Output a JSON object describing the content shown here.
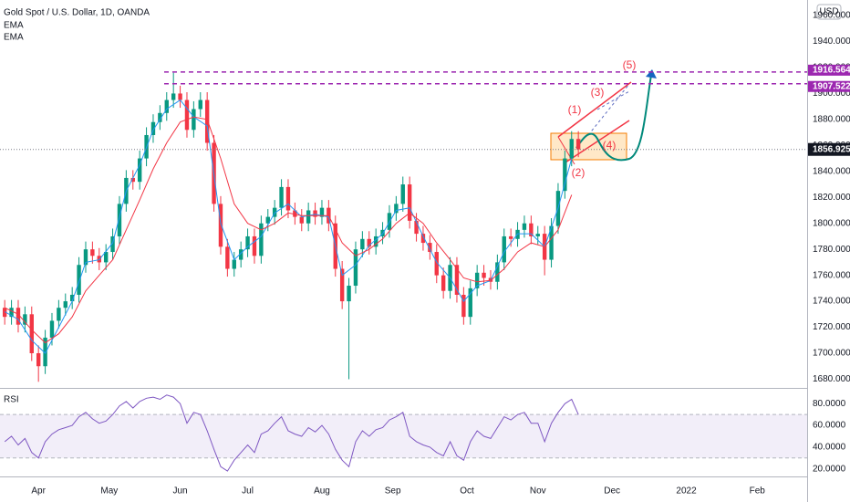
{
  "chart_data": {
    "type": "candlestick",
    "title": "Gold Spot / U.S. Dollar, 1D, OANDA",
    "currency": "USD",
    "x": [
      -10,
      -8,
      -6,
      -4,
      -2,
      0,
      2,
      4,
      6,
      8,
      10,
      12,
      14,
      16,
      18,
      20,
      22,
      24,
      26,
      28,
      30,
      32,
      34,
      36,
      38,
      40,
      42,
      44,
      46,
      48,
      50,
      52,
      54,
      56,
      58,
      60,
      62,
      64,
      66,
      68,
      70,
      72,
      74,
      76,
      78,
      80,
      82,
      84,
      86,
      88,
      90,
      92,
      94,
      96,
      98,
      100,
      102,
      104,
      106,
      108,
      110,
      112,
      114,
      116,
      118,
      120,
      122,
      124,
      126,
      128,
      130,
      132,
      134,
      136,
      138,
      140,
      142,
      144,
      146,
      148,
      150,
      152,
      154,
      156,
      158,
      160
    ],
    "open": [
      1735,
      1728,
      1735,
      1722,
      1730,
      1700,
      1690,
      1712,
      1725,
      1735,
      1740,
      1745,
      1768,
      1780,
      1775,
      1770,
      1778,
      1790,
      1815,
      1835,
      1832,
      1850,
      1868,
      1878,
      1885,
      1895,
      1900,
      1895,
      1872,
      1888,
      1895,
      1862,
      1815,
      1782,
      1765,
      1772,
      1780,
      1790,
      1775,
      1800,
      1805,
      1812,
      1828,
      1810,
      1805,
      1800,
      1810,
      1805,
      1812,
      1800,
      1765,
      1740,
      1752,
      1780,
      1788,
      1782,
      1790,
      1795,
      1808,
      1815,
      1830,
      1802,
      1792,
      1785,
      1778,
      1760,
      1748,
      1768,
      1745,
      1728,
      1750,
      1762,
      1758,
      1755,
      1770,
      1790,
      1788,
      1795,
      1800,
      1790,
      1792,
      1772,
      1798,
      1825,
      1850,
      1865
    ],
    "high": [
      1741,
      1741,
      1741,
      1736,
      1736,
      1706,
      1718,
      1731,
      1741,
      1746,
      1751,
      1774,
      1786,
      1786,
      1781,
      1784,
      1796,
      1821,
      1841,
      1841,
      1856,
      1874,
      1884,
      1891,
      1901,
      1916,
      1906,
      1901,
      1894,
      1901,
      1901,
      1868,
      1821,
      1788,
      1778,
      1786,
      1796,
      1796,
      1806,
      1811,
      1818,
      1834,
      1834,
      1816,
      1811,
      1816,
      1816,
      1818,
      1818,
      1806,
      1771,
      1758,
      1786,
      1794,
      1794,
      1796,
      1801,
      1814,
      1821,
      1836,
      1836,
      1808,
      1798,
      1791,
      1784,
      1766,
      1774,
      1774,
      1751,
      1756,
      1768,
      1768,
      1764,
      1776,
      1796,
      1796,
      1801,
      1806,
      1806,
      1798,
      1798,
      1804,
      1831,
      1856,
      1871,
      1871
    ],
    "low": [
      1722,
      1722,
      1716,
      1716,
      1694,
      1678,
      1684,
      1706,
      1719,
      1729,
      1734,
      1739,
      1762,
      1769,
      1764,
      1764,
      1772,
      1784,
      1809,
      1826,
      1826,
      1844,
      1862,
      1872,
      1879,
      1889,
      1889,
      1866,
      1866,
      1882,
      1856,
      1809,
      1776,
      1759,
      1759,
      1766,
      1774,
      1769,
      1769,
      1794,
      1799,
      1806,
      1804,
      1799,
      1794,
      1794,
      1799,
      1799,
      1794,
      1759,
      1734,
      1680,
      1746,
      1774,
      1776,
      1776,
      1784,
      1789,
      1802,
      1809,
      1796,
      1786,
      1779,
      1772,
      1754,
      1742,
      1742,
      1739,
      1722,
      1722,
      1744,
      1752,
      1749,
      1749,
      1764,
      1782,
      1782,
      1789,
      1784,
      1784,
      1760,
      1766,
      1792,
      1819,
      1844,
      1851
    ],
    "close": [
      1728,
      1735,
      1722,
      1730,
      1700,
      1690,
      1712,
      1725,
      1735,
      1740,
      1745,
      1768,
      1780,
      1775,
      1770,
      1778,
      1790,
      1815,
      1835,
      1832,
      1850,
      1868,
      1878,
      1885,
      1895,
      1900,
      1895,
      1872,
      1888,
      1895,
      1862,
      1815,
      1782,
      1765,
      1772,
      1780,
      1790,
      1775,
      1800,
      1805,
      1812,
      1828,
      1810,
      1805,
      1800,
      1810,
      1805,
      1812,
      1800,
      1765,
      1740,
      1752,
      1780,
      1788,
      1782,
      1790,
      1795,
      1808,
      1815,
      1830,
      1802,
      1792,
      1785,
      1778,
      1760,
      1748,
      1768,
      1745,
      1728,
      1750,
      1762,
      1758,
      1755,
      1770,
      1790,
      1788,
      1795,
      1800,
      1790,
      1792,
      1772,
      1798,
      1825,
      1850,
      1865,
      1857
    ],
    "up_color": "#089981",
    "down_color": "#f23645",
    "series": [
      {
        "name": "EMA",
        "color": "#2196f3",
        "x": [
          -10,
          -6,
          -2,
          2,
          6,
          10,
          14,
          18,
          22,
          26,
          30,
          34,
          38,
          42,
          46,
          50,
          54,
          58,
          62,
          66,
          70,
          74,
          78,
          82,
          86,
          90,
          94,
          98,
          102,
          106,
          110,
          114,
          118,
          122,
          126,
          130,
          134,
          138,
          142,
          146,
          150,
          154,
          158
        ],
        "values": [
          1732,
          1726,
          1710,
          1700,
          1720,
          1740,
          1770,
          1772,
          1785,
          1825,
          1845,
          1872,
          1888,
          1895,
          1882,
          1875,
          1800,
          1772,
          1782,
          1790,
          1808,
          1815,
          1805,
          1807,
          1805,
          1760,
          1768,
          1783,
          1792,
          1810,
          1812,
          1790,
          1770,
          1758,
          1740,
          1752,
          1756,
          1778,
          1792,
          1792,
          1782,
          1812,
          1850
        ]
      },
      {
        "name": "EMA",
        "color": "#f23645",
        "x": [
          -10,
          -6,
          -2,
          2,
          6,
          10,
          14,
          18,
          22,
          26,
          30,
          34,
          38,
          42,
          46,
          50,
          54,
          58,
          62,
          66,
          70,
          74,
          78,
          82,
          86,
          90,
          94,
          98,
          102,
          106,
          110,
          114,
          118,
          122,
          126,
          130,
          134,
          138,
          142,
          146,
          150,
          154,
          158
        ],
        "values": [
          1735,
          1730,
          1718,
          1708,
          1715,
          1728,
          1748,
          1760,
          1772,
          1795,
          1818,
          1842,
          1862,
          1878,
          1882,
          1880,
          1850,
          1815,
          1800,
          1795,
          1800,
          1808,
          1806,
          1806,
          1806,
          1785,
          1775,
          1780,
          1788,
          1800,
          1808,
          1800,
          1785,
          1772,
          1758,
          1755,
          1756,
          1765,
          1778,
          1785,
          1782,
          1795,
          1822
        ]
      }
    ],
    "xlim": [
      -11.4,
      227.8
    ],
    "xticks": [
      {
        "value": 0,
        "label": "Apr"
      },
      {
        "value": 21,
        "label": "May"
      },
      {
        "value": 42,
        "label": "Jun"
      },
      {
        "value": 62,
        "label": "Jul"
      },
      {
        "value": 84,
        "label": "Aug"
      },
      {
        "value": 105,
        "label": "Sep"
      },
      {
        "value": 127,
        "label": "Oct"
      },
      {
        "value": 148,
        "label": "Nov"
      },
      {
        "value": 170,
        "label": "Dec"
      },
      {
        "value": 192,
        "label": "2022"
      },
      {
        "value": 213,
        "label": "Feb"
      }
    ],
    "ylim": [
      1674,
      1972
    ],
    "yticks": [
      {
        "value": 1680,
        "label": "1680.000"
      },
      {
        "value": 1700,
        "label": "1700.000"
      },
      {
        "value": 1720,
        "label": "1720.000"
      },
      {
        "value": 1740,
        "label": "1740.000"
      },
      {
        "value": 1760,
        "label": "1760.000"
      },
      {
        "value": 1780,
        "label": "1780.000"
      },
      {
        "value": 1800,
        "label": "1800.000"
      },
      {
        "value": 1820,
        "label": "1820.000"
      },
      {
        "value": 1840,
        "label": "1840.000"
      },
      {
        "value": 1860,
        "label": "1860.000"
      },
      {
        "value": 1880,
        "label": "1880.000"
      },
      {
        "value": 1900,
        "label": "1900.000"
      },
      {
        "value": 1920,
        "label": "1920.000"
      },
      {
        "value": 1940,
        "label": "1940.000"
      },
      {
        "value": 1960,
        "label": "1960.000"
      }
    ],
    "hlines": [
      {
        "value": 1916.564,
        "color": "#9c27b0"
      },
      {
        "value": 1907.522,
        "color": "#9c27b0"
      }
    ],
    "last_price": 1856.925,
    "wave_labels": [
      "(1)",
      "(2)",
      "(3)",
      "(4)",
      "(5)"
    ],
    "rsi": {
      "title": "RSI",
      "color": "#7e57c2",
      "values": [
        45,
        50,
        42,
        48,
        35,
        30,
        45,
        52,
        56,
        58,
        60,
        68,
        72,
        66,
        62,
        64,
        70,
        78,
        82,
        76,
        82,
        85,
        86,
        84,
        88,
        86,
        80,
        62,
        72,
        70,
        55,
        38,
        22,
        18,
        28,
        35,
        42,
        35,
        52,
        55,
        62,
        68,
        55,
        52,
        50,
        58,
        54,
        60,
        52,
        38,
        28,
        22,
        45,
        55,
        50,
        56,
        58,
        65,
        68,
        72,
        50,
        45,
        42,
        40,
        35,
        32,
        45,
        32,
        28,
        45,
        55,
        50,
        48,
        58,
        68,
        65,
        70,
        72,
        62,
        62,
        45,
        62,
        72,
        80,
        84,
        70
      ],
      "band": [
        30,
        70
      ],
      "ylim": [
        13,
        92
      ],
      "yticks": [
        {
          "value": 80,
          "label": "80.0000"
        },
        {
          "value": 60,
          "label": "60.0000"
        },
        {
          "value": 40,
          "label": "40.0000"
        },
        {
          "value": 20,
          "label": "20.0000"
        }
      ]
    }
  }
}
